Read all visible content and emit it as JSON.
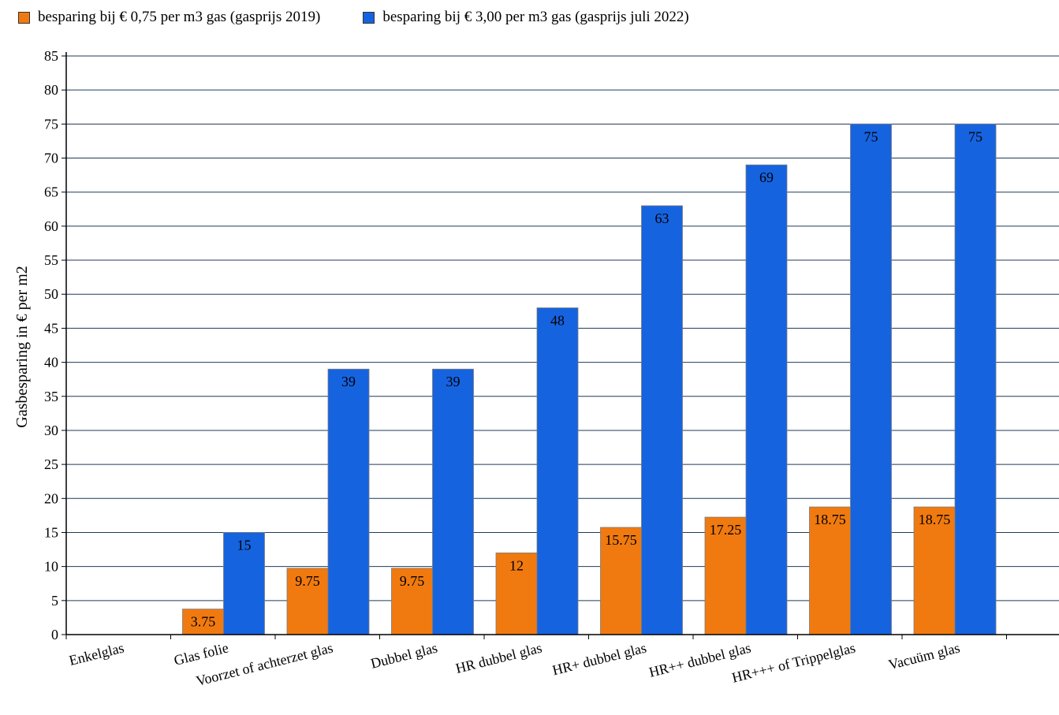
{
  "chart_data": {
    "type": "bar",
    "ylabel": "Gasbesparing in € per m2",
    "ylim": [
      0,
      85
    ],
    "yticks": [
      0,
      5,
      10,
      15,
      20,
      25,
      30,
      35,
      40,
      45,
      50,
      55,
      60,
      65,
      70,
      75,
      80,
      85
    ],
    "ytick_labels": [
      "0",
      "5",
      "10",
      "15",
      "20",
      "25",
      "30",
      "35",
      "40",
      "45",
      "50",
      "55",
      "60",
      "65",
      "70",
      "75",
      "80",
      "85"
    ],
    "grid": true,
    "legend_position": "top-left",
    "categories": [
      "Enkelglas",
      "Glas folie",
      "Voorzet of achterzet glas",
      "Dubbel glas",
      "HR dubbel glas",
      "HR+ dubbel glas",
      "HR++ dubbel glas",
      "HR+++ of Trippelglas",
      "Vacuüm glas"
    ],
    "series": [
      {
        "name": "besparing bij € 0,75 per m3 gas (gasprijs 2019)",
        "color": "#f07a10",
        "values": [
          0,
          3.75,
          9.75,
          9.75,
          12,
          15.75,
          17.25,
          18.75,
          18.75
        ],
        "labels": [
          "",
          "3.75",
          "9.75",
          "9.75",
          "12",
          "15.75",
          "17.25",
          "18.75",
          "18.75"
        ]
      },
      {
        "name": "besparing bij € 3,00 per m3 gas (gasprijs juli 2022)",
        "color": "#1663e0",
        "values": [
          0,
          15,
          39,
          39,
          48,
          63,
          69,
          75,
          75
        ],
        "labels": [
          "",
          "15",
          "39",
          "39",
          "48",
          "63",
          "69",
          "75",
          "75"
        ]
      }
    ]
  }
}
